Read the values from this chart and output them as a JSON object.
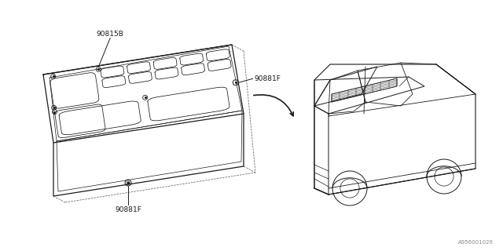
{
  "bg_color": "#ffffff",
  "line_color": "#1a1a1a",
  "dash_color": "#555555",
  "label_90815B": "90815B",
  "label_90881F_top": "90881F",
  "label_90881F_bot": "90881F",
  "diagram_id": "A956001026",
  "fig_width": 6.4,
  "fig_height": 3.2,
  "dpi": 100
}
